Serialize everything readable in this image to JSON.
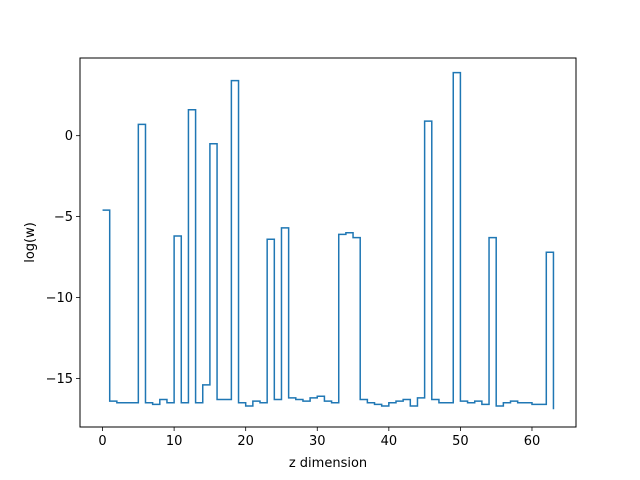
{
  "chart_data": {
    "type": "line",
    "drawstyle": "steps-post",
    "xlabel": "z dimension",
    "ylabel": "log(w)",
    "xlim": [
      -3.15,
      66.15
    ],
    "ylim": [
      -18.0,
      4.8
    ],
    "x_ticks": [
      0,
      10,
      20,
      30,
      40,
      50,
      60
    ],
    "y_ticks": [
      -15,
      -10,
      -5,
      0
    ],
    "grid": false,
    "series": [
      {
        "color": "#1f77b4",
        "x": [
          0,
          1,
          2,
          3,
          4,
          5,
          6,
          7,
          8,
          9,
          10,
          11,
          12,
          13,
          14,
          15,
          16,
          17,
          18,
          19,
          20,
          21,
          22,
          23,
          24,
          25,
          26,
          27,
          28,
          29,
          30,
          31,
          32,
          33,
          34,
          35,
          36,
          37,
          38,
          39,
          40,
          41,
          42,
          43,
          44,
          45,
          46,
          47,
          48,
          49,
          50,
          51,
          52,
          53,
          54,
          55,
          56,
          57,
          58,
          59,
          60,
          61,
          62,
          63
        ],
        "values": [
          -4.6,
          -16.4,
          -16.5,
          -16.5,
          -16.5,
          0.7,
          -16.5,
          -16.6,
          -16.3,
          -16.5,
          -6.2,
          -16.5,
          1.6,
          -16.5,
          -15.4,
          -0.5,
          -16.3,
          -16.3,
          3.4,
          -16.5,
          -16.7,
          -16.4,
          -16.5,
          -6.4,
          -16.3,
          -5.7,
          -16.2,
          -16.3,
          -16.4,
          -16.2,
          -16.1,
          -16.4,
          -16.5,
          -6.1,
          -6.0,
          -6.3,
          -16.3,
          -16.5,
          -16.6,
          -16.7,
          -16.5,
          -16.4,
          -16.3,
          -16.7,
          -16.2,
          0.9,
          -16.3,
          -16.5,
          -16.5,
          3.9,
          -16.4,
          -16.5,
          -16.4,
          -16.6,
          -6.3,
          -16.7,
          -16.5,
          -16.4,
          -16.5,
          -16.5,
          -16.6,
          -16.6,
          -7.2,
          -16.9
        ]
      }
    ]
  }
}
